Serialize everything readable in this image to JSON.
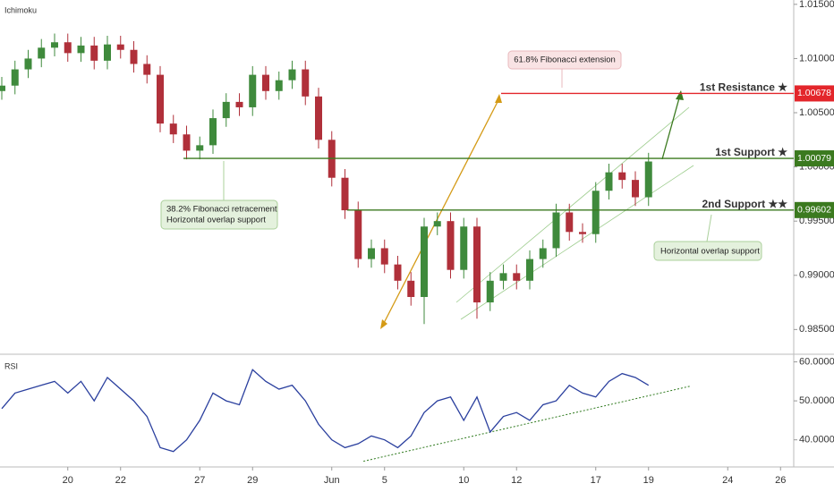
{
  "chart_data": [
    {
      "type": "candlestick",
      "title": "Ichimoku",
      "x": [
        -0.5,
        0,
        0.5,
        1,
        1.5,
        2,
        2.5,
        3,
        3.5,
        4,
        4.5,
        5,
        5.5,
        6,
        6.5,
        7,
        7.5,
        8,
        8.5,
        9,
        9.5,
        10,
        10.5,
        11,
        11.5,
        12,
        12.5,
        13,
        13.5,
        14,
        14.5,
        15,
        15.5,
        16,
        16.5,
        17,
        17.5,
        18,
        18.5,
        19,
        19.5,
        20,
        20.5,
        21,
        21.5,
        22,
        22.5,
        23,
        23.5,
        24
      ],
      "open": [
        1.007,
        1.0075,
        1.009,
        1.01,
        1.011,
        1.0115,
        1.0105,
        1.0112,
        1.0098,
        1.0113,
        1.0108,
        1.0095,
        1.0085,
        1.004,
        1.003,
        1.0015,
        1.002,
        1.0045,
        1.006,
        1.0055,
        1.0085,
        1.007,
        1.008,
        1.009,
        1.0065,
        1.0025,
        0.999,
        0.996,
        0.9915,
        0.9925,
        0.991,
        0.9895,
        0.988,
        0.9945,
        0.995,
        0.9905,
        0.9945,
        0.9875,
        0.9895,
        0.9902,
        0.9895,
        0.9915,
        0.9925,
        0.9958,
        0.994,
        0.9938,
        0.9978,
        0.9995,
        0.9988,
        0.9972
      ],
      "high": [
        1.0083,
        1.0098,
        1.0108,
        1.0118,
        1.0123,
        1.0123,
        1.012,
        1.012,
        1.0121,
        1.0121,
        1.0116,
        1.0103,
        1.0093,
        1.0048,
        1.0038,
        1.0028,
        1.0053,
        1.0068,
        1.0068,
        1.0093,
        1.0093,
        1.0088,
        1.0098,
        1.0098,
        1.0073,
        1.0033,
        0.9998,
        0.9968,
        0.9933,
        0.9933,
        0.9918,
        0.9903,
        0.9953,
        0.9958,
        0.9958,
        0.9953,
        0.9953,
        0.9903,
        0.991,
        0.991,
        0.9923,
        0.9933,
        0.9966,
        0.9966,
        0.9948,
        0.9986,
        1.0003,
        1.0003,
        0.9996,
        1.0013
      ],
      "low": [
        1.0062,
        1.0067,
        1.0082,
        1.0092,
        1.0102,
        1.0097,
        1.0097,
        1.009,
        1.009,
        1.01,
        1.0087,
        1.0077,
        1.0032,
        1.0022,
        1.0007,
        1.0007,
        1.0012,
        1.0037,
        1.0047,
        1.0047,
        1.0062,
        1.0062,
        1.0072,
        1.0057,
        1.0017,
        0.9982,
        0.9952,
        0.9907,
        0.9907,
        0.9902,
        0.9887,
        0.9872,
        0.9855,
        0.9937,
        0.9897,
        0.9897,
        0.986,
        0.9867,
        0.9887,
        0.9887,
        0.9887,
        0.9907,
        0.9917,
        0.9932,
        0.993,
        0.993,
        0.997,
        0.998,
        0.9964,
        0.9964
      ],
      "close": [
        1.0075,
        1.009,
        1.01,
        1.011,
        1.0115,
        1.0105,
        1.0112,
        1.0098,
        1.0113,
        1.0108,
        1.0095,
        1.0085,
        1.004,
        1.003,
        1.0015,
        1.002,
        1.0045,
        1.006,
        1.0055,
        1.0085,
        1.007,
        1.008,
        1.009,
        1.0065,
        1.0025,
        0.999,
        0.996,
        0.9915,
        0.9925,
        0.991,
        0.9895,
        0.988,
        0.9945,
        0.995,
        0.9905,
        0.9945,
        0.9875,
        0.9895,
        0.9902,
        0.9895,
        0.9915,
        0.9925,
        0.9958,
        0.994,
        0.9938,
        0.9978,
        0.9995,
        0.9988,
        0.9972,
        1.0005
      ],
      "up_color": "#3f8a3c",
      "down_color": "#b0303a",
      "xlim": [
        -0.5,
        29.5
      ],
      "ylim": [
        0.9828,
        1.0154
      ],
      "yticks": [
        {
          "value": 1.015,
          "label": "1.01500"
        },
        {
          "value": 1.01,
          "label": "1.01000"
        },
        {
          "value": 1.005,
          "label": "1.00500"
        },
        {
          "value": 1.0,
          "label": "1.00000"
        },
        {
          "value": 0.995,
          "label": "0.99500"
        },
        {
          "value": 0.99,
          "label": "0.99000"
        },
        {
          "value": 0.985,
          "label": "0.98500"
        }
      ],
      "levels": [
        {
          "name": "1st Resistance ★",
          "value": 1.00678,
          "color": "#e3262b"
        },
        {
          "name": "1st Support ★",
          "value": 1.00079,
          "color": "#3b7a1f"
        },
        {
          "name": "2nd Support ★★",
          "value": 0.99602,
          "color": "#3b7a1f"
        }
      ],
      "annotations": [
        [
          "61.8% Fibonacci extension"
        ],
        [
          "38.2% Fibonacci retracement",
          "Horizontal overlap support"
        ],
        [
          "Horizontal overlap support"
        ]
      ]
    },
    {
      "type": "line",
      "title": "RSI",
      "color": "#2a3f9e",
      "x": [
        -0.5,
        0,
        0.5,
        1,
        1.5,
        2,
        2.5,
        3,
        3.5,
        4,
        4.5,
        5,
        5.5,
        6,
        6.5,
        7,
        7.5,
        8,
        8.5,
        9,
        9.5,
        10,
        10.5,
        11,
        11.5,
        12,
        12.5,
        13,
        13.5,
        14,
        14.5,
        15,
        15.5,
        16,
        16.5,
        17,
        17.5,
        18,
        18.5,
        19,
        19.5,
        20,
        20.5,
        21,
        21.5,
        22,
        22.5,
        23,
        23.5,
        24
      ],
      "values": [
        48,
        52,
        53,
        54,
        55,
        52,
        55,
        50,
        56,
        53,
        50,
        46,
        38,
        37,
        40,
        45,
        52,
        50,
        49,
        58,
        55,
        53,
        54,
        50,
        44,
        40,
        38,
        39,
        41,
        40,
        38,
        41,
        47,
        50,
        51,
        45,
        51,
        42,
        46,
        47,
        45,
        49,
        50,
        54,
        52,
        51,
        55,
        57,
        56,
        54
      ],
      "trendline": {
        "x": [
          13.2,
          25.6
        ],
        "values": [
          34.5,
          53.8
        ]
      },
      "xlim": [
        -0.5,
        29.5
      ],
      "ylim": [
        33.5,
        61.5
      ],
      "yticks": [
        {
          "value": 60,
          "label": "60.0000"
        },
        {
          "value": 50,
          "label": "50.0000"
        },
        {
          "value": 40,
          "label": "40.0000"
        }
      ],
      "xticks": [
        {
          "value": 2,
          "label": "20"
        },
        {
          "value": 4,
          "label": "22"
        },
        {
          "value": 7,
          "label": "27"
        },
        {
          "value": 9,
          "label": "29"
        },
        {
          "value": 12,
          "label": "Jun"
        },
        {
          "value": 14,
          "label": "5"
        },
        {
          "value": 17,
          "label": "10"
        },
        {
          "value": 19,
          "label": "12"
        },
        {
          "value": 22,
          "label": "17"
        },
        {
          "value": 24,
          "label": "19"
        },
        {
          "value": 27,
          "label": "24"
        },
        {
          "value": 29,
          "label": "26"
        }
      ]
    }
  ]
}
